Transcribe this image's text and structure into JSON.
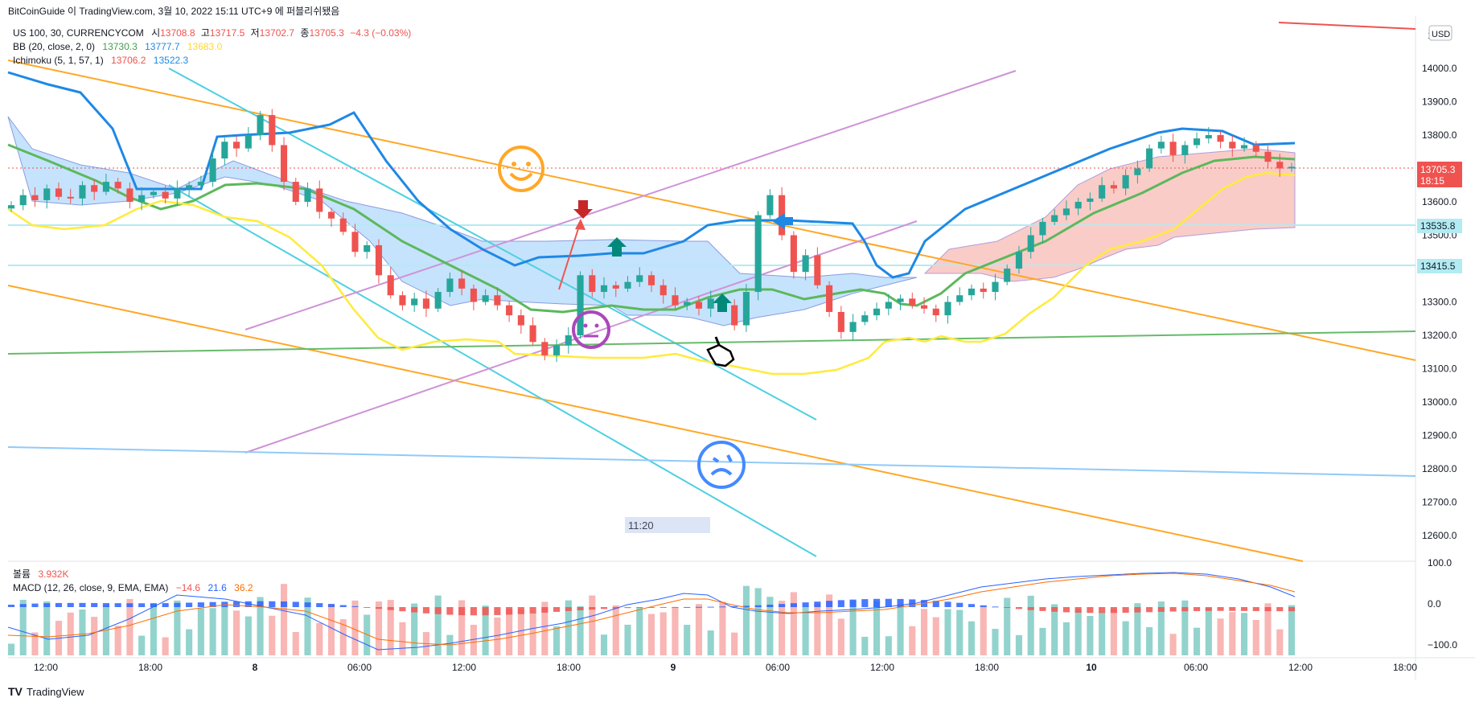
{
  "header": {
    "title_line": "BitCoinGuide 이 TradingView.com, 3월 10, 2022 15:11 UTC+9 에 퍼블리쉬됐음"
  },
  "legend": {
    "symbol": "US 100, 30, CURRENCYCOM",
    "open_label": "시",
    "open": "13708.8",
    "high_label": "고",
    "high": "13717.5",
    "low_label": "저",
    "low": "13702.7",
    "close_label": "종",
    "close": "13705.3",
    "change": "−4.3 (−0.03%)",
    "bb_label": "BB (20, close, 2, 0)",
    "bb_basis": "13730.3",
    "bb_upper": "13777.7",
    "bb_lower": "13683.0",
    "ichimoku_label": "Ichimoku (5, 1, 57, 1)",
    "ichimoku_a": "13706.2",
    "ichimoku_b": "13522.3",
    "volume_label": "볼륨",
    "volume_value": "3.932K",
    "macd_label": "MACD (12, 26, close, 9, EMA, EMA)",
    "macd_hist": "−14.6",
    "macd_line": "21.6",
    "macd_signal": "36.2"
  },
  "price_axis": {
    "currency": "USD",
    "ticks": [
      "14000.0",
      "13900.0",
      "13800.0",
      "13700.0",
      "13600.0",
      "13500.0",
      "13400.0",
      "13300.0",
      "13200.0",
      "13100.0",
      "13000.0",
      "12900.0",
      "12800.0",
      "12700.0",
      "12600.0"
    ],
    "partial_top": "14",
    "last_price": "13705.3",
    "countdown": "18:15",
    "level_1": "13535.8",
    "level_2": "13415.5"
  },
  "macd_axis": {
    "ticks": [
      "100.0",
      "0.0",
      "−100.0"
    ]
  },
  "time_axis": {
    "ticks": [
      "12:00",
      "18:00",
      "8",
      "06:00",
      "12:00",
      "18:00",
      "9",
      "06:00",
      "12:00",
      "18:00",
      "10",
      "06:00",
      "12:00",
      "18:00"
    ]
  },
  "cursor_time": "11:20",
  "footer": {
    "brand": "TradingView"
  },
  "colors": {
    "up": "#26a69a",
    "down": "#ef5350",
    "bb_basis": "#4caf50",
    "bb_lower": "#ffeb3b",
    "ichimoku_base": "#1e88e5",
    "cloud_blue": "#bbdefb",
    "cloud_red": "#f8c6c2",
    "trend_orange": "#ffa726",
    "trend_cyan": "#4dd0e1",
    "trend_violet": "#ce93d8",
    "trend_green": "#66bb6a",
    "trend_blue": "#90caf9",
    "trend_red": "#ef5350",
    "smile_face": "#ffa726",
    "neutral_face": "#ab47bc",
    "sad_face": "#448aff"
  },
  "chart_data": {
    "type": "candlestick",
    "symbol": "US 100, 30, CURRENCYCOM",
    "ylim": [
      12550,
      14080
    ],
    "grid": false,
    "candle_closes": [
      13590,
      13620,
      13605,
      13640,
      13615,
      13610,
      13650,
      13630,
      13660,
      13640,
      13600,
      13620,
      13630,
      13610,
      13640,
      13650,
      13660,
      13730,
      13780,
      13760,
      13800,
      13860,
      13770,
      13660,
      13600,
      13640,
      13570,
      13550,
      13510,
      13450,
      13470,
      13380,
      13320,
      13290,
      13310,
      13280,
      13330,
      13370,
      13340,
      13300,
      13320,
      13290,
      13260,
      13230,
      13180,
      13140,
      13170,
      13200,
      13380,
      13330,
      13350,
      13340,
      13360,
      13380,
      13350,
      13320,
      13290,
      13300,
      13280,
      13310,
      13290,
      13230,
      13330,
      13560,
      13620,
      13500,
      13390,
      13440,
      13350,
      13270,
      13210,
      13240,
      13260,
      13280,
      13300,
      13310,
      13290,
      13280,
      13260,
      13300,
      13320,
      13340,
      13330,
      13360,
      13400,
      13450,
      13500,
      13540,
      13560,
      13580,
      13600,
      13610,
      13650,
      13640,
      13680,
      13700,
      13760,
      13780,
      13740,
      13770,
      13790,
      13800,
      13780,
      13760,
      13770,
      13750,
      13720,
      13700,
      13705
    ],
    "price_levels": [
      13535.8,
      13415.5
    ],
    "last_price": 13705.3,
    "indicators": [
      "BB (20, close, 2, 0)",
      "Ichimoku (5, 1, 57, 1)",
      "MACD (12, 26, close, 9, EMA, EMA)"
    ]
  }
}
